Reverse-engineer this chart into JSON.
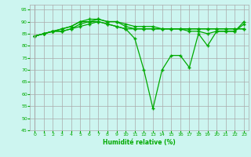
{
  "xlabel": "Humidité relative (%)",
  "background_color": "#cdf5f0",
  "grid_color": "#aaaaaa",
  "line_color": "#00aa00",
  "xlim": [
    -0.5,
    23.5
  ],
  "ylim": [
    45,
    97
  ],
  "yticks": [
    45,
    50,
    55,
    60,
    65,
    70,
    75,
    80,
    85,
    90,
    95
  ],
  "xticks": [
    0,
    1,
    2,
    3,
    4,
    5,
    6,
    7,
    8,
    9,
    10,
    11,
    12,
    13,
    14,
    15,
    16,
    17,
    18,
    19,
    20,
    21,
    22,
    23
  ],
  "series": [
    [
      84,
      85,
      86,
      87,
      88,
      90,
      90,
      90,
      89,
      88,
      87,
      83,
      70,
      54,
      70,
      76,
      76,
      71,
      85,
      80,
      86,
      86,
      86,
      89
    ],
    [
      84,
      85,
      86,
      86,
      87,
      88,
      89,
      90,
      89,
      88,
      87,
      87,
      87,
      87,
      87,
      87,
      87,
      87,
      87,
      87,
      87,
      87,
      87,
      87
    ],
    [
      84,
      85,
      86,
      86,
      87,
      89,
      90,
      91,
      90,
      90,
      89,
      88,
      88,
      88,
      87,
      87,
      87,
      86,
      86,
      85,
      86,
      86,
      86,
      90
    ],
    [
      84,
      85,
      86,
      87,
      88,
      90,
      91,
      91,
      90,
      90,
      88,
      87,
      87,
      87,
      87,
      87,
      87,
      87,
      87,
      87,
      87,
      87,
      87,
      87
    ]
  ]
}
